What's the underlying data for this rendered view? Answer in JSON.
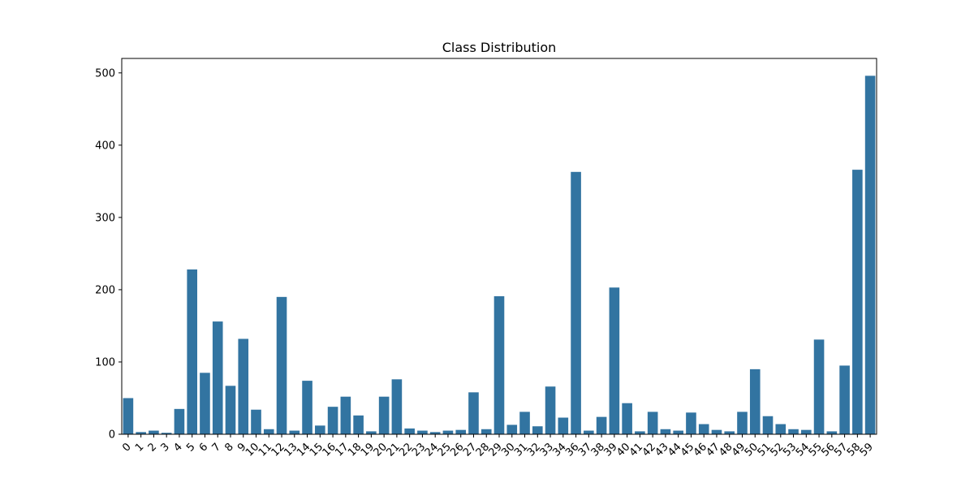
{
  "chart_data": {
    "type": "bar",
    "title": "Class Distribution",
    "xlabel": "",
    "ylabel": "",
    "categories": [
      "0",
      "1",
      "2",
      "3",
      "4",
      "5",
      "6",
      "7",
      "8",
      "9",
      "10",
      "11",
      "12",
      "13",
      "14",
      "15",
      "16",
      "17",
      "18",
      "19",
      "20",
      "21",
      "22",
      "23",
      "24",
      "25",
      "26",
      "27",
      "28",
      "29",
      "30",
      "31",
      "32",
      "33",
      "34",
      "36",
      "37",
      "38",
      "39",
      "40",
      "41",
      "42",
      "43",
      "44",
      "45",
      "46",
      "47",
      "48",
      "49",
      "50",
      "51",
      "52",
      "53",
      "54",
      "55",
      "56",
      "57",
      "58",
      "59"
    ],
    "values": [
      50,
      3,
      5,
      2,
      35,
      228,
      85,
      156,
      67,
      132,
      34,
      7,
      190,
      5,
      74,
      12,
      38,
      52,
      26,
      4,
      52,
      76,
      8,
      5,
      3,
      5,
      6,
      58,
      7,
      191,
      13,
      31,
      11,
      66,
      23,
      363,
      5,
      24,
      203,
      43,
      4,
      31,
      7,
      5,
      30,
      14,
      6,
      4,
      31,
      90,
      25,
      14,
      7,
      6,
      131,
      4,
      95,
      366,
      496
    ],
    "yticks": [
      0,
      100,
      200,
      300,
      400,
      500
    ],
    "ylim": [
      0,
      520
    ],
    "bar_color": "#3274a1",
    "grid": false,
    "legend": "none"
  }
}
